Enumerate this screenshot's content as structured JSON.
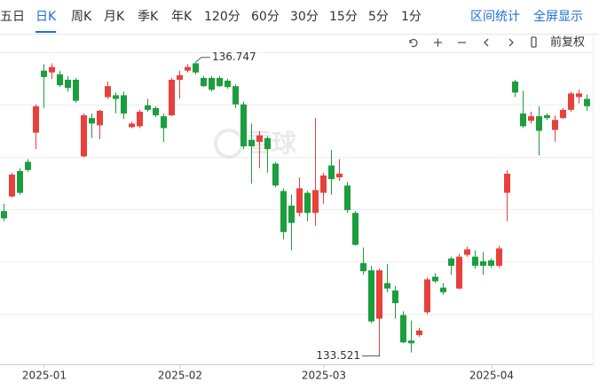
{
  "toolbar": {
    "periods": [
      "五日",
      "日K",
      "周K",
      "月K",
      "季K",
      "年K",
      "120分",
      "60分",
      "30分",
      "15分",
      "5分",
      "1分"
    ],
    "selected": 1,
    "actions": [
      "区间统计",
      "全屏显示"
    ],
    "adjust": "前复权"
  },
  "watermark": "雪球",
  "chart_data": {
    "type": "candlestick",
    "categories": [
      null,
      null,
      null,
      null,
      null,
      "2025-01",
      null,
      null,
      null,
      null,
      null,
      null,
      null,
      null,
      null,
      null,
      null,
      null,
      null,
      null,
      null,
      null,
      "2025-02",
      null,
      null,
      null,
      null,
      null,
      null,
      null,
      null,
      null,
      null,
      null,
      null,
      null,
      null,
      null,
      null,
      null,
      "2025-03",
      null,
      null,
      null,
      null,
      null,
      null,
      null,
      null,
      null,
      null,
      null,
      null,
      null,
      null,
      null,
      null,
      null,
      null,
      null,
      null,
      "2025-04",
      null,
      null,
      null,
      null,
      null,
      null,
      null,
      null,
      null,
      null,
      null,
      null
    ],
    "open": [
      135.11,
      135.27,
      135.55,
      135.65,
      135.97,
      136.65,
      136.63,
      136.61,
      136.55,
      136.55,
      135.71,
      136.13,
      136.05,
      136.36,
      136.38,
      136.38,
      136.03,
      136.04,
      136.27,
      136.24,
      136.15,
      136.16,
      136.55,
      136.65,
      136.73,
      136.57,
      136.57,
      136.57,
      136.54,
      136.48,
      136.28,
      135.89,
      135.87,
      135.91,
      135.63,
      135.33,
      135.17,
      135.09,
      135.31,
      135.09,
      135.31,
      135.61,
      135.48,
      135.39,
      135.09,
      134.54,
      134.46,
      133.93,
      134.32,
      134.24,
      133.97,
      133.69,
      133.75,
      134.0,
      134.39,
      134.27,
      134.59,
      134.26,
      134.63,
      134.61,
      134.56,
      134.57,
      134.51,
      135.31,
      136.53,
      136.18,
      136.1,
      136.15,
      136.16,
      136.0,
      136.13,
      136.22,
      136.36,
      136.34
    ],
    "high": [
      135.19,
      135.53,
      135.58,
      135.68,
      136.28,
      136.72,
      136.73,
      136.65,
      136.59,
      136.57,
      136.18,
      136.18,
      136.22,
      136.53,
      136.41,
      136.42,
      136.09,
      136.22,
      136.34,
      136.26,
      136.18,
      136.57,
      136.65,
      136.72,
      136.747,
      136.59,
      136.59,
      136.59,
      136.56,
      136.5,
      136.31,
      136.07,
      135.99,
      135.93,
      135.65,
      135.36,
      135.29,
      135.48,
      135.33,
      136.13,
      135.53,
      135.78,
      135.68,
      135.43,
      135.11,
      134.71,
      134.51,
      134.48,
      134.53,
      134.29,
      134.01,
      133.91,
      133.83,
      134.38,
      134.43,
      134.32,
      134.61,
      134.64,
      134.72,
      134.68,
      134.66,
      134.59,
      134.73,
      135.56,
      136.55,
      136.43,
      136.2,
      136.26,
      136.18,
      136.16,
      136.24,
      136.42,
      136.44,
      136.39
    ],
    "low": [
      135.0,
      135.26,
      135.29,
      135.54,
      135.79,
      136.24,
      136.56,
      136.47,
      136.42,
      136.3,
      135.7,
      135.91,
      135.9,
      136.34,
      136.18,
      136.12,
      136.02,
      136.02,
      136.2,
      136.14,
      135.87,
      136.15,
      136.34,
      136.63,
      136.61,
      136.47,
      136.42,
      136.47,
      136.45,
      136.24,
      135.79,
      135.41,
      135.58,
      135.53,
      135.37,
      134.8,
      134.68,
      135.05,
      135.0,
      134.95,
      135.19,
      135.29,
      135.44,
      135.09,
      134.73,
      134.41,
      133.88,
      133.521,
      134.22,
      133.93,
      133.66,
      133.56,
      133.73,
      133.98,
      134.32,
      134.19,
      134.41,
      134.25,
      134.61,
      134.48,
      134.41,
      134.49,
      134.49,
      135.0,
      136.36,
      136.02,
      136.07,
      135.72,
      136.11,
      135.87,
      136.12,
      136.2,
      136.29,
      136.21
    ],
    "close": [
      135.03,
      135.51,
      135.31,
      135.56,
      136.26,
      136.58,
      136.69,
      136.49,
      136.46,
      136.32,
      136.16,
      136.07,
      136.21,
      136.48,
      136.34,
      136.18,
      136.07,
      136.2,
      136.22,
      136.16,
      136.02,
      136.55,
      136.6,
      136.69,
      136.63,
      136.48,
      136.44,
      136.48,
      136.47,
      136.28,
      135.82,
      135.82,
      135.94,
      135.79,
      135.39,
      134.88,
      134.98,
      135.36,
      135.09,
      135.34,
      135.5,
      135.46,
      135.52,
      135.12,
      134.74,
      134.45,
      133.9,
      134.46,
      134.26,
      134.1,
      133.67,
      133.66,
      133.8,
      134.36,
      134.34,
      134.22,
      134.51,
      134.61,
      134.69,
      134.51,
      134.51,
      134.51,
      134.7,
      135.52,
      136.41,
      136.04,
      136.15,
      135.99,
      136.13,
      136.11,
      136.22,
      136.4,
      136.4,
      136.26
    ],
    "up_color": "#e8403c",
    "down_color": "#1b9e3e",
    "ylim": [
      133.42,
      136.89
    ]
  }
}
